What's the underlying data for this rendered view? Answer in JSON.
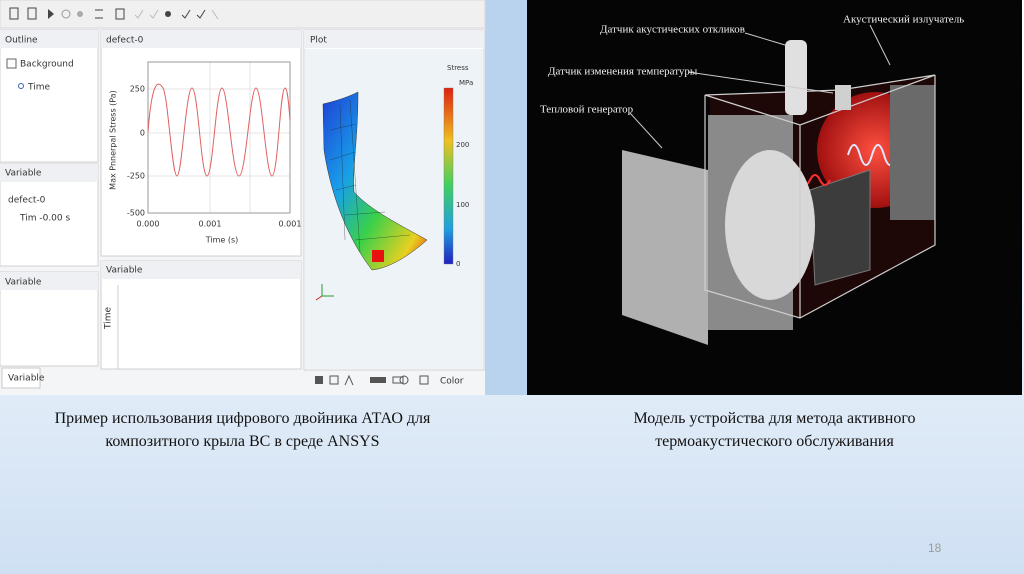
{
  "screenshot": {
    "outline_panel": {
      "title": "Outline",
      "items": [
        "Background",
        "Time"
      ]
    },
    "variable_panel": {
      "title": "Variable",
      "items": [
        "defect-0",
        "Tim -0.00 s"
      ]
    },
    "variable_panel_empty": {
      "title": "Variable"
    },
    "bottom_tab": "Variable",
    "graph_panel": {
      "title": "defect-0",
      "y_label": "Max Pnnerpal Stress (Pa)",
      "x_label": "Time (s)",
      "yticks": [
        "250",
        "0",
        "-250",
        "-500"
      ],
      "xticks": [
        "0.000",
        "0.001",
        "0.001"
      ]
    },
    "variable_plot_panel": {
      "title": "Variable",
      "axis_label": "Time"
    },
    "plot_panel": {
      "title": "Plot",
      "legend_title": "Stress",
      "legend_unit": "MPa",
      "legend_ticks": [
        "200",
        "100",
        "0"
      ]
    },
    "toolbar_color": "Color"
  },
  "device_image": {
    "labels": [
      "Датчик акустических откликов",
      "Акустический излучатель",
      "Датчик изменения температуры",
      "Тепловой генератор"
    ]
  },
  "captions": {
    "left": [
      "Пример использования цифрового двойника АТАО для",
      "композитного крыла ВС в среде ANSYS"
    ],
    "right": [
      "Модель устройства для метода активного",
      "термоакустического обслуживания"
    ]
  },
  "page_number": "18"
}
